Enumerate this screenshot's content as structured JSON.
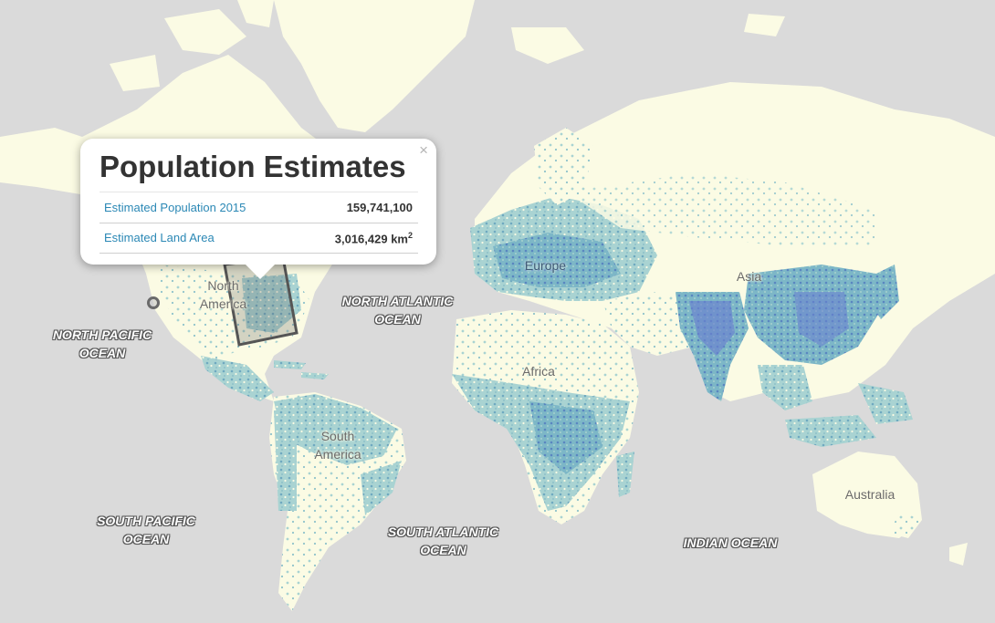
{
  "popup": {
    "title": "Population Estimates",
    "close_label": "×",
    "rows": [
      {
        "label": "Estimated Population 2015",
        "value": "159,741,100"
      },
      {
        "label": "Estimated Land Area",
        "value": "3,016,429 km",
        "unit_sup": "2"
      }
    ]
  },
  "map": {
    "ocean_labels": [
      {
        "id": "north-pacific",
        "text": "NORTH PACIFIC\nOCEAN"
      },
      {
        "id": "north-atlantic",
        "text": "NORTH ATLANTIC\nOCEAN"
      },
      {
        "id": "south-pacific",
        "text": "SOUTH PACIFIC\nOCEAN"
      },
      {
        "id": "south-atlantic",
        "text": "SOUTH ATLANTIC\nOCEAN"
      },
      {
        "id": "indian",
        "text": "INDIAN OCEAN"
      }
    ],
    "continent_labels": [
      {
        "id": "north-america",
        "text": "North\nAmerica"
      },
      {
        "id": "south-america",
        "text": "South\nAmerica"
      },
      {
        "id": "europe",
        "text": "Europe"
      },
      {
        "id": "africa",
        "text": "Africa"
      },
      {
        "id": "asia",
        "text": "Asia"
      },
      {
        "id": "australia",
        "text": "Australia"
      }
    ],
    "colors": {
      "ocean": "#dadada",
      "land": "#fbfbe4",
      "density_low": "#bfe0d8",
      "density_mid": "#7fbcc6",
      "density_high": "#5b8fc2",
      "density_peak": "#6a7fcf",
      "selection": "#555555"
    }
  }
}
